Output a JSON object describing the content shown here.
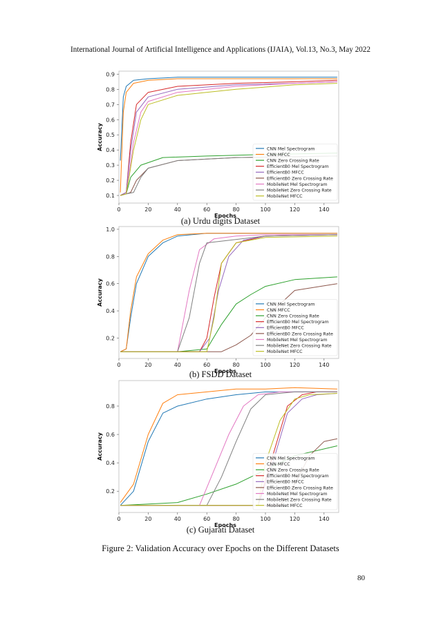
{
  "header": {
    "text": "International Journal of Artificial Intelligence and Applications (IJAIA), Vol.13, No.3, May 2022"
  },
  "series_colors": [
    "#1f77b4",
    "#ff7f0e",
    "#2ca02c",
    "#d62728",
    "#9467bd",
    "#8c564b",
    "#e377c2",
    "#7f7f7f",
    "#bcbd22"
  ],
  "chart_data": [
    {
      "type": "line",
      "xlabel": "Epochs",
      "ylabel": "Accuracy",
      "xlim": [
        0,
        150
      ],
      "ylim": [
        0.05,
        0.92
      ],
      "xticks": [
        0,
        20,
        40,
        60,
        80,
        100,
        120,
        140
      ],
      "yticks": [
        0.1,
        0.2,
        0.3,
        0.4,
        0.5,
        0.6,
        0.7,
        0.8,
        0.9
      ],
      "legend_position": "lower right",
      "series": [
        {
          "name": "CNN Mel Spectrogram",
          "x": [
            1,
            3,
            5,
            10,
            20,
            40,
            80,
            120,
            149
          ],
          "values": [
            0.33,
            0.75,
            0.82,
            0.86,
            0.87,
            0.88,
            0.88,
            0.88,
            0.88
          ]
        },
        {
          "name": "CNN MFCC",
          "x": [
            1,
            3,
            5,
            10,
            20,
            40,
            80,
            120,
            149
          ],
          "values": [
            0.12,
            0.65,
            0.78,
            0.84,
            0.86,
            0.87,
            0.87,
            0.87,
            0.87
          ]
        },
        {
          "name": "CNN Zero Crossing Rate",
          "x": [
            1,
            5,
            8,
            15,
            30,
            60,
            100,
            149
          ],
          "values": [
            0.1,
            0.11,
            0.22,
            0.3,
            0.35,
            0.36,
            0.37,
            0.38
          ]
        },
        {
          "name": "EfficientB0 Mel Spectrogram",
          "x": [
            1,
            5,
            8,
            12,
            20,
            40,
            80,
            120,
            149
          ],
          "values": [
            0.1,
            0.12,
            0.45,
            0.7,
            0.78,
            0.82,
            0.84,
            0.85,
            0.86
          ]
        },
        {
          "name": "EfficientB0 MFCC",
          "x": [
            1,
            5,
            8,
            12,
            20,
            40,
            80,
            120,
            149
          ],
          "values": [
            0.1,
            0.12,
            0.4,
            0.65,
            0.75,
            0.8,
            0.83,
            0.84,
            0.85
          ]
        },
        {
          "name": "EfficientB0 Zero Crossing Rate",
          "x": [
            1,
            5,
            8,
            12,
            20,
            40,
            80,
            149
          ],
          "values": [
            0.1,
            0.11,
            0.12,
            0.2,
            0.28,
            0.33,
            0.35,
            0.36
          ]
        },
        {
          "name": "MobileNet Mel Spectrogram",
          "x": [
            1,
            5,
            10,
            15,
            20,
            40,
            80,
            120,
            149
          ],
          "values": [
            0.1,
            0.11,
            0.45,
            0.65,
            0.72,
            0.78,
            0.82,
            0.84,
            0.85
          ]
        },
        {
          "name": "MobileNet Zero Crossing Rate",
          "x": [
            1,
            5,
            10,
            15,
            20,
            40,
            80,
            149
          ],
          "values": [
            0.1,
            0.11,
            0.12,
            0.22,
            0.28,
            0.33,
            0.35,
            0.36
          ]
        },
        {
          "name": "MobileNet MFCC",
          "x": [
            1,
            5,
            10,
            15,
            20,
            40,
            80,
            120,
            149
          ],
          "values": [
            0.1,
            0.11,
            0.4,
            0.6,
            0.7,
            0.76,
            0.8,
            0.83,
            0.84
          ]
        }
      ]
    },
    {
      "type": "line",
      "xlabel": "Epochs",
      "ylabel": "Accuracy",
      "xlim": [
        0,
        150
      ],
      "ylim": [
        0.05,
        1.02
      ],
      "xticks": [
        0,
        20,
        40,
        60,
        80,
        100,
        120,
        140
      ],
      "yticks": [
        0.2,
        0.4,
        0.6,
        0.8,
        1.0
      ],
      "legend_position": "lower right",
      "series": [
        {
          "name": "CNN Mel Spectrogram",
          "x": [
            1,
            5,
            8,
            12,
            20,
            30,
            40,
            60,
            100,
            149
          ],
          "values": [
            0.1,
            0.12,
            0.35,
            0.6,
            0.8,
            0.9,
            0.95,
            0.97,
            0.97,
            0.97
          ]
        },
        {
          "name": "CNN MFCC",
          "x": [
            1,
            5,
            8,
            12,
            20,
            30,
            40,
            60,
            100,
            149
          ],
          "values": [
            0.1,
            0.12,
            0.4,
            0.65,
            0.82,
            0.92,
            0.96,
            0.97,
            0.97,
            0.97
          ]
        },
        {
          "name": "CNN Zero Crossing Rate",
          "x": [
            1,
            40,
            60,
            70,
            80,
            90,
            100,
            120,
            149
          ],
          "values": [
            0.1,
            0.1,
            0.12,
            0.3,
            0.45,
            0.52,
            0.58,
            0.63,
            0.65
          ]
        },
        {
          "name": "EfficientB0 Mel Spectrogram",
          "x": [
            1,
            55,
            60,
            65,
            70,
            80,
            100,
            149
          ],
          "values": [
            0.1,
            0.1,
            0.2,
            0.5,
            0.75,
            0.9,
            0.95,
            0.96
          ]
        },
        {
          "name": "EfficientB0 MFCC",
          "x": [
            1,
            55,
            62,
            68,
            75,
            85,
            100,
            149
          ],
          "values": [
            0.1,
            0.1,
            0.2,
            0.55,
            0.8,
            0.92,
            0.95,
            0.96
          ]
        },
        {
          "name": "EfficientB0 Zero Crossing Rate",
          "x": [
            1,
            70,
            80,
            90,
            100,
            110,
            120,
            149
          ],
          "values": [
            0.1,
            0.1,
            0.15,
            0.22,
            0.35,
            0.45,
            0.55,
            0.6
          ]
        },
        {
          "name": "MobileNet Mel Spectrogram",
          "x": [
            1,
            40,
            48,
            55,
            65,
            80,
            100,
            149
          ],
          "values": [
            0.1,
            0.1,
            0.55,
            0.85,
            0.93,
            0.95,
            0.96,
            0.96
          ]
        },
        {
          "name": "MobileNet Zero Crossing Rate",
          "x": [
            1,
            40,
            48,
            55,
            60,
            100,
            149
          ],
          "values": [
            0.1,
            0.1,
            0.35,
            0.75,
            0.9,
            0.95,
            0.96
          ]
        },
        {
          "name": "MobileNet MFCC",
          "x": [
            1,
            60,
            65,
            70,
            80,
            100,
            149
          ],
          "values": [
            0.1,
            0.1,
            0.35,
            0.75,
            0.9,
            0.94,
            0.95
          ]
        }
      ]
    },
    {
      "type": "line",
      "xlabel": "Epochs",
      "ylabel": "Accuracy",
      "xlim": [
        0,
        150
      ],
      "ylim": [
        0.05,
        0.98
      ],
      "xticks": [
        0,
        20,
        40,
        60,
        80,
        100,
        120,
        140
      ],
      "yticks": [
        0.2,
        0.4,
        0.6,
        0.8
      ],
      "legend_position": "lower right",
      "series": [
        {
          "name": "CNN Mel Spectrogram",
          "x": [
            1,
            10,
            20,
            30,
            40,
            60,
            80,
            100,
            120,
            149
          ],
          "values": [
            0.1,
            0.2,
            0.55,
            0.75,
            0.8,
            0.85,
            0.88,
            0.9,
            0.9,
            0.9
          ]
        },
        {
          "name": "CNN MFCC",
          "x": [
            1,
            10,
            20,
            30,
            40,
            60,
            80,
            100,
            120,
            149
          ],
          "values": [
            0.12,
            0.25,
            0.6,
            0.82,
            0.88,
            0.9,
            0.92,
            0.92,
            0.93,
            0.92
          ]
        },
        {
          "name": "CNN Zero Crossing Rate",
          "x": [
            1,
            40,
            60,
            80,
            100,
            120,
            149
          ],
          "values": [
            0.1,
            0.12,
            0.18,
            0.25,
            0.35,
            0.45,
            0.52
          ]
        },
        {
          "name": "EfficientB0 Mel Spectrogram",
          "x": [
            1,
            95,
            105,
            115,
            125,
            135,
            149
          ],
          "values": [
            0.1,
            0.1,
            0.45,
            0.8,
            0.88,
            0.9,
            0.9
          ]
        },
        {
          "name": "EfficientB0 MFCC",
          "x": [
            1,
            95,
            105,
            115,
            125,
            135,
            149
          ],
          "values": [
            0.1,
            0.1,
            0.4,
            0.75,
            0.85,
            0.88,
            0.89
          ]
        },
        {
          "name": "EfficientB0 Zero Crossing Rate",
          "x": [
            1,
            110,
            120,
            130,
            140,
            149
          ],
          "values": [
            0.1,
            0.1,
            0.25,
            0.45,
            0.55,
            0.57
          ]
        },
        {
          "name": "MobileNet Mel Spectrogram",
          "x": [
            1,
            55,
            65,
            75,
            85,
            95,
            110,
            149
          ],
          "values": [
            0.1,
            0.1,
            0.35,
            0.6,
            0.8,
            0.88,
            0.9,
            0.9
          ]
        },
        {
          "name": "MobileNet Zero Crossing Rate",
          "x": [
            1,
            60,
            70,
            80,
            90,
            100,
            120,
            149
          ],
          "values": [
            0.1,
            0.1,
            0.3,
            0.55,
            0.78,
            0.88,
            0.9,
            0.9
          ]
        },
        {
          "name": "MobileNet MFCC",
          "x": [
            1,
            95,
            100,
            110,
            120,
            130,
            149
          ],
          "values": [
            0.1,
            0.1,
            0.4,
            0.7,
            0.85,
            0.88,
            0.89
          ]
        }
      ]
    }
  ],
  "captions": {
    "a": "(a) Urdu digits Dataset",
    "b": "(b) FSDD Dataset",
    "c": "(c) Gujarati Dataset"
  },
  "figure_caption": "Figure 2: Validation Accuracy over Epochs on the Different Datasets",
  "page_number": "80"
}
